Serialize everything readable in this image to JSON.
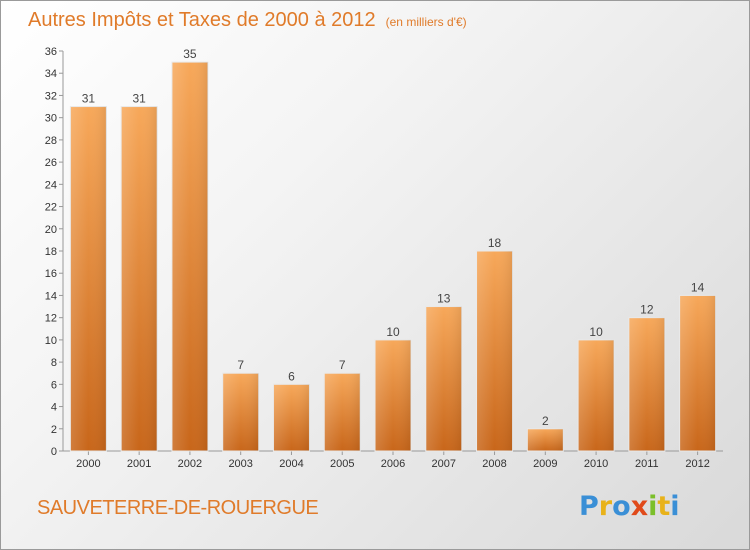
{
  "title": "Autres Impôts et Taxes de 2000 à 2012",
  "title_unit": "(en milliers d'€)",
  "commune": "SAUVETERRE-DE-ROUERGUE",
  "logo": {
    "letters": [
      "P",
      "r",
      "o",
      "x",
      "i",
      "t",
      "i"
    ],
    "colors": [
      "#3a8fd6",
      "#e8b21a",
      "#3a8fd6",
      "#e04a1a",
      "#7bbf2a",
      "#e8b21a",
      "#3a8fd6"
    ]
  },
  "chart_data": {
    "type": "bar",
    "categories": [
      "2000",
      "2001",
      "2002",
      "2003",
      "2004",
      "2005",
      "2006",
      "2007",
      "2008",
      "2009",
      "2010",
      "2011",
      "2012"
    ],
    "values": [
      31,
      31,
      35,
      7,
      6,
      7,
      10,
      13,
      18,
      2,
      10,
      12,
      14
    ],
    "ylim": [
      0,
      36
    ],
    "yticks": [
      0,
      2,
      4,
      6,
      8,
      10,
      12,
      14,
      16,
      18,
      20,
      22,
      24,
      26,
      28,
      30,
      32,
      34,
      36
    ],
    "grid": false,
    "bar_color": "#f08a2c"
  }
}
